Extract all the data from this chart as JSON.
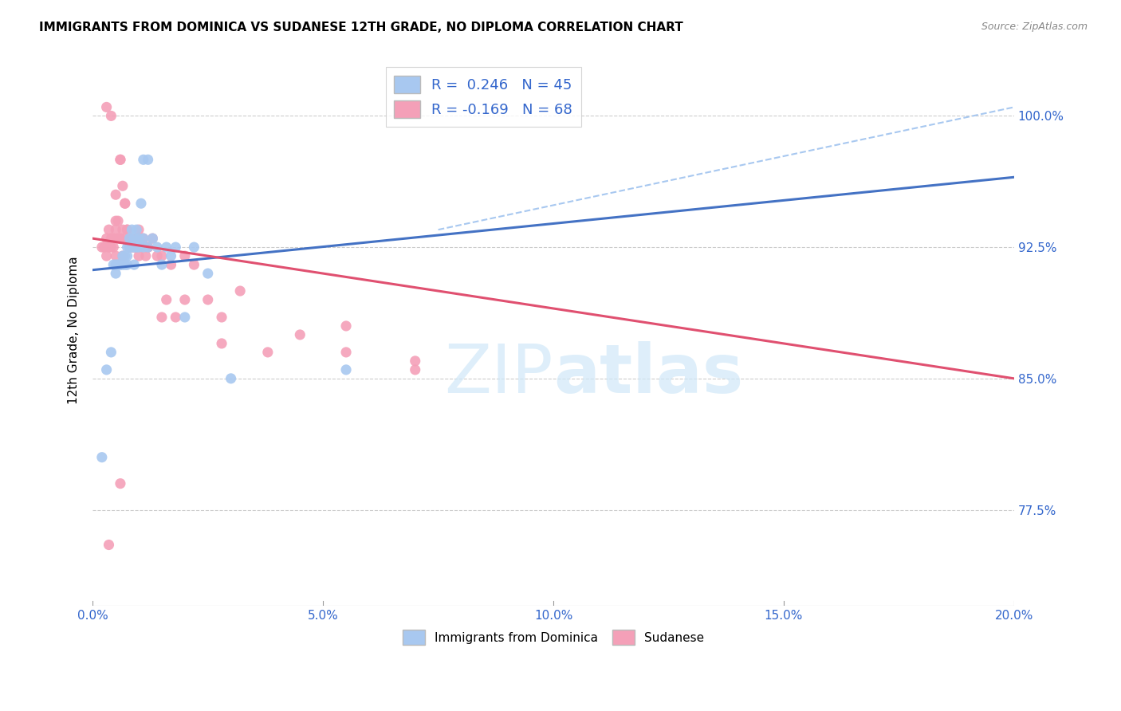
{
  "title": "IMMIGRANTS FROM DOMINICA VS SUDANESE 12TH GRADE, NO DIPLOMA CORRELATION CHART",
  "source": "Source: ZipAtlas.com",
  "ylabel": "12th Grade, No Diploma",
  "yticks": [
    77.5,
    85.0,
    92.5,
    100.0
  ],
  "ytick_labels": [
    "77.5%",
    "85.0%",
    "92.5%",
    "100.0%"
  ],
  "xmin": 0.0,
  "xmax": 20.0,
  "ymin": 72.0,
  "ymax": 103.5,
  "dominica_R": 0.246,
  "dominica_N": 45,
  "sudanese_R": -0.169,
  "sudanese_N": 68,
  "dominica_color": "#a8c8f0",
  "sudanese_color": "#f4a0b8",
  "trend_dominica_color": "#4472c4",
  "trend_sudanese_color": "#e05070",
  "dashed_dominica_color": "#a8c8f0",
  "watermark_color": "#d0e8f8",
  "legend_dominica": "Immigrants from Dominica",
  "legend_sudanese": "Sudanese",
  "dominica_x": [
    0.2,
    0.4,
    0.45,
    0.5,
    0.5,
    0.55,
    0.6,
    0.6,
    0.65,
    0.65,
    0.7,
    0.7,
    0.75,
    0.75,
    0.8,
    0.8,
    0.85,
    0.85,
    0.9,
    0.9,
    0.95,
    0.95,
    1.0,
    1.0,
    1.05,
    1.1,
    1.1,
    1.2,
    1.2,
    1.3,
    1.4,
    1.5,
    1.6,
    1.7,
    1.8,
    2.0,
    2.2,
    2.5,
    3.0,
    5.5,
    0.3,
    0.55,
    0.75,
    0.9,
    1.1
  ],
  "dominica_y": [
    80.5,
    86.5,
    91.5,
    91.5,
    91.0,
    91.5,
    91.5,
    91.5,
    91.5,
    92.0,
    91.5,
    92.0,
    92.0,
    92.5,
    92.5,
    93.0,
    92.5,
    93.5,
    92.5,
    93.0,
    92.5,
    93.5,
    92.5,
    93.0,
    95.0,
    93.0,
    97.5,
    92.5,
    97.5,
    93.0,
    92.5,
    91.5,
    92.5,
    92.0,
    92.5,
    88.5,
    92.5,
    91.0,
    85.0,
    85.5,
    85.5,
    91.5,
    91.5,
    91.5,
    92.5
  ],
  "sudanese_x": [
    0.2,
    0.25,
    0.3,
    0.3,
    0.35,
    0.35,
    0.4,
    0.4,
    0.45,
    0.45,
    0.5,
    0.5,
    0.5,
    0.55,
    0.55,
    0.6,
    0.6,
    0.65,
    0.65,
    0.7,
    0.7,
    0.75,
    0.8,
    0.8,
    0.85,
    0.85,
    0.9,
    0.95,
    1.0,
    1.0,
    1.05,
    1.1,
    1.15,
    1.2,
    1.3,
    1.4,
    1.5,
    1.6,
    1.7,
    1.8,
    2.0,
    2.2,
    2.5,
    2.8,
    3.2,
    3.8,
    4.5,
    5.5,
    7.0,
    0.3,
    0.4,
    0.5,
    0.6,
    0.65,
    0.7,
    0.75,
    0.8,
    0.85,
    0.9,
    1.0,
    1.2,
    1.5,
    2.0,
    2.8,
    5.5,
    7.0,
    0.35,
    0.6
  ],
  "sudanese_y": [
    92.5,
    92.5,
    92.0,
    93.0,
    92.5,
    93.5,
    93.0,
    92.5,
    93.0,
    92.5,
    94.0,
    93.5,
    92.0,
    94.0,
    93.0,
    97.5,
    93.0,
    96.0,
    92.0,
    95.0,
    93.0,
    93.5,
    93.0,
    92.5,
    93.0,
    92.5,
    92.5,
    92.5,
    93.0,
    93.5,
    92.5,
    93.0,
    92.0,
    92.5,
    93.0,
    92.0,
    92.0,
    89.5,
    91.5,
    88.5,
    89.5,
    91.5,
    89.5,
    88.5,
    90.0,
    86.5,
    87.5,
    86.5,
    86.0,
    100.5,
    100.0,
    95.5,
    97.5,
    93.5,
    95.0,
    93.5,
    92.5,
    93.0,
    92.5,
    92.0,
    92.5,
    88.5,
    92.0,
    87.0,
    88.0,
    85.5,
    75.5,
    79.0
  ],
  "trend_dominica_x0": 0.0,
  "trend_dominica_y0": 91.2,
  "trend_dominica_x1": 20.0,
  "trend_dominica_y1": 96.5,
  "trend_sudanese_x0": 0.0,
  "trend_sudanese_y0": 93.0,
  "trend_sudanese_x1": 20.0,
  "trend_sudanese_y1": 85.0,
  "dashed_x0": 7.5,
  "dashed_y0": 93.5,
  "dashed_x1": 20.0,
  "dashed_y1": 100.5
}
